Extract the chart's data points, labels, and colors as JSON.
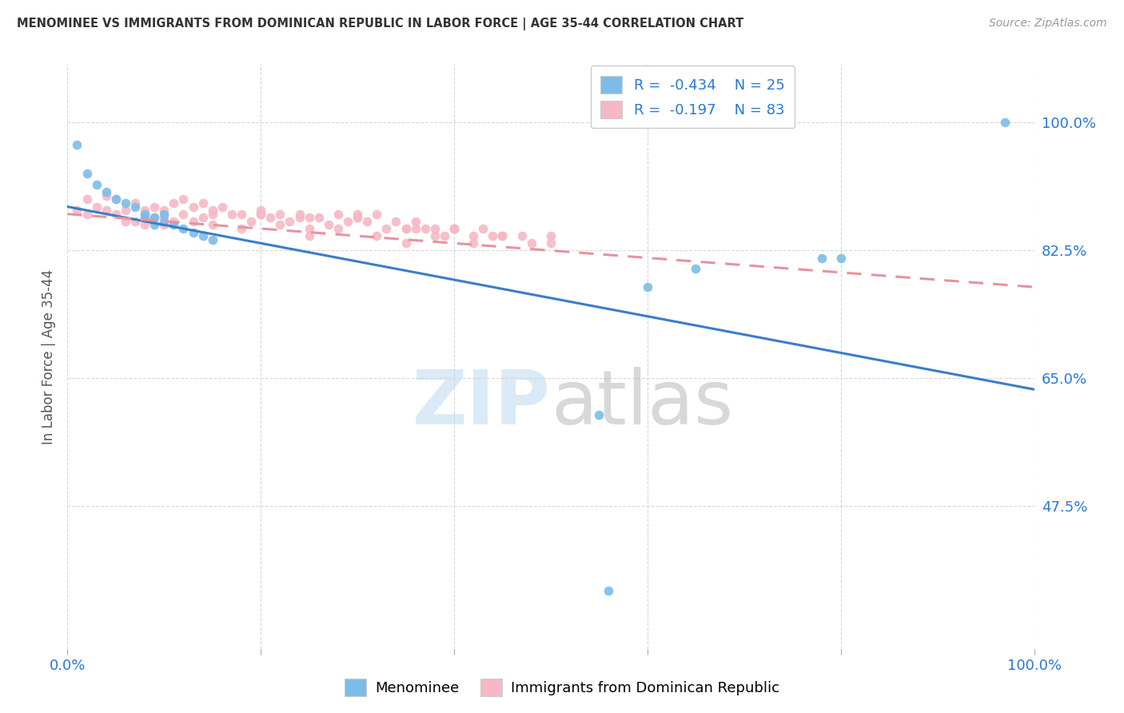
{
  "title": "MENOMINEE VS IMMIGRANTS FROM DOMINICAN REPUBLIC IN LABOR FORCE | AGE 35-44 CORRELATION CHART",
  "source": "Source: ZipAtlas.com",
  "ylabel": "In Labor Force | Age 35-44",
  "blue_label": "Menominee",
  "pink_label": "Immigrants from Dominican Republic",
  "blue_R": -0.434,
  "blue_N": 25,
  "pink_R": -0.197,
  "pink_N": 83,
  "blue_color": "#7bbde8",
  "pink_color": "#f5b8c4",
  "blue_line_color": "#3a7dc9",
  "pink_line_color": "#e8929e",
  "xlim": [
    0.0,
    1.0
  ],
  "ylim": [
    0.28,
    1.08
  ],
  "yticks": [
    0.475,
    0.65,
    0.825,
    1.0
  ],
  "ytick_labels": [
    "47.5%",
    "65.0%",
    "82.5%",
    "100.0%"
  ],
  "xticks": [
    0.0,
    0.2,
    0.4,
    0.6,
    0.8,
    1.0
  ],
  "xtick_labels": [
    "0.0%",
    "",
    "",
    "",
    "",
    "100.0%"
  ],
  "blue_trend_x": [
    0.0,
    1.0
  ],
  "blue_trend_y": [
    0.885,
    0.635
  ],
  "pink_trend_x": [
    0.0,
    1.0
  ],
  "pink_trend_y": [
    0.875,
    0.775
  ],
  "blue_x": [
    0.01,
    0.02,
    0.03,
    0.04,
    0.05,
    0.06,
    0.07,
    0.08,
    0.09,
    0.1,
    0.11,
    0.12,
    0.13,
    0.14,
    0.15,
    0.08,
    0.09,
    0.1,
    0.6,
    0.65,
    0.78,
    0.8,
    0.97,
    0.56,
    0.55
  ],
  "blue_y": [
    0.97,
    0.93,
    0.915,
    0.905,
    0.895,
    0.89,
    0.885,
    0.875,
    0.87,
    0.865,
    0.86,
    0.855,
    0.85,
    0.845,
    0.84,
    0.87,
    0.86,
    0.875,
    0.775,
    0.8,
    0.815,
    0.815,
    1.0,
    0.36,
    0.6
  ],
  "pink_x": [
    0.01,
    0.02,
    0.02,
    0.03,
    0.04,
    0.04,
    0.05,
    0.05,
    0.06,
    0.06,
    0.07,
    0.07,
    0.08,
    0.08,
    0.09,
    0.09,
    0.1,
    0.1,
    0.11,
    0.11,
    0.12,
    0.12,
    0.13,
    0.13,
    0.14,
    0.14,
    0.15,
    0.15,
    0.16,
    0.17,
    0.18,
    0.19,
    0.2,
    0.21,
    0.22,
    0.23,
    0.24,
    0.25,
    0.26,
    0.27,
    0.28,
    0.29,
    0.3,
    0.31,
    0.32,
    0.33,
    0.34,
    0.35,
    0.36,
    0.37,
    0.38,
    0.39,
    0.4,
    0.42,
    0.43,
    0.44,
    0.45,
    0.47,
    0.48,
    0.5,
    0.18,
    0.22,
    0.25,
    0.28,
    0.32,
    0.35,
    0.38,
    0.42,
    0.2,
    0.24,
    0.3,
    0.36,
    0.4,
    0.45,
    0.5,
    0.3,
    0.35,
    0.4,
    0.25,
    0.2,
    0.15,
    0.1,
    0.08
  ],
  "pink_y": [
    0.88,
    0.875,
    0.895,
    0.885,
    0.88,
    0.9,
    0.875,
    0.895,
    0.88,
    0.865,
    0.89,
    0.865,
    0.88,
    0.86,
    0.885,
    0.87,
    0.88,
    0.86,
    0.89,
    0.865,
    0.895,
    0.875,
    0.885,
    0.865,
    0.89,
    0.87,
    0.88,
    0.86,
    0.885,
    0.875,
    0.875,
    0.865,
    0.875,
    0.87,
    0.875,
    0.865,
    0.875,
    0.855,
    0.87,
    0.86,
    0.875,
    0.865,
    0.875,
    0.865,
    0.875,
    0.855,
    0.865,
    0.855,
    0.865,
    0.855,
    0.855,
    0.845,
    0.855,
    0.845,
    0.855,
    0.845,
    0.845,
    0.845,
    0.835,
    0.845,
    0.855,
    0.86,
    0.845,
    0.855,
    0.845,
    0.835,
    0.845,
    0.835,
    0.88,
    0.87,
    0.87,
    0.855,
    0.855,
    0.845,
    0.835,
    0.87,
    0.855,
    0.855,
    0.87,
    0.875,
    0.875,
    0.87,
    0.875
  ]
}
